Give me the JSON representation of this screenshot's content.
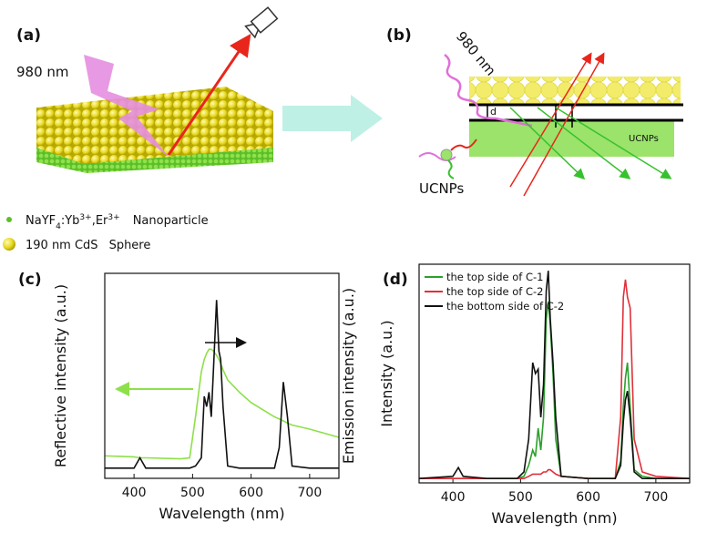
{
  "diagram": {
    "a_label": "(a)",
    "a_wavelength": "980 nm",
    "b_label": "(b)",
    "b_wavelength": "980 nm",
    "b_layer_label": "UCNPs",
    "b_particle_label": "UCNPs",
    "b_spacing": "d",
    "legend": [
      {
        "parts": [
          "NaYF",
          "4",
          ":Yb",
          "3+",
          ",Er",
          "3+"
        ],
        "desc": "Nanoparticle"
      },
      {
        "parts": [
          "190 nm CdS"
        ],
        "desc": "Sphere"
      }
    ]
  },
  "chart_data": [
    {
      "type": "line",
      "panel_label": "(c)",
      "xlabel": "Wavelength (nm)",
      "ylabel": "Reflective intensity (a.u.)",
      "y2label": "Emission intensity (a.u.)",
      "x": [
        350,
        400,
        410,
        420,
        480,
        495,
        505,
        515,
        520,
        524,
        528,
        532,
        536,
        541,
        545,
        548,
        552,
        560,
        580,
        600,
        640,
        648,
        655,
        662,
        670,
        700,
        750
      ],
      "xlim": [
        350,
        750
      ],
      "xticks": [
        400,
        500,
        600,
        700
      ],
      "ylim": [
        0,
        1
      ],
      "y2lim": [
        0,
        1
      ],
      "series": [
        {
          "color": "#8ee04a",
          "values": [
            0.11,
            0.105,
            0.1,
            0.1,
            0.095,
            0.1,
            0.3,
            0.52,
            0.58,
            0.61,
            0.63,
            0.63,
            0.62,
            0.6,
            0.58,
            0.56,
            0.53,
            0.48,
            0.42,
            0.37,
            0.3,
            0.29,
            0.28,
            0.27,
            0.26,
            0.24,
            0.2
          ]
        },
        {
          "color": "#111111",
          "axis": "y2",
          "values": [
            0.05,
            0.05,
            0.1,
            0.05,
            0.05,
            0.05,
            0.06,
            0.1,
            0.4,
            0.35,
            0.42,
            0.3,
            0.55,
            0.87,
            0.62,
            0.58,
            0.35,
            0.06,
            0.05,
            0.05,
            0.05,
            0.15,
            0.47,
            0.3,
            0.06,
            0.05,
            0.05
          ]
        }
      ]
    },
    {
      "type": "line",
      "panel_label": "(d)",
      "xlabel": "Wavelength (nm)",
      "ylabel": "Intensity (a.u.)",
      "x": [
        350,
        400,
        408,
        415,
        450,
        495,
        505,
        512,
        518,
        522,
        526,
        530,
        534,
        538,
        541,
        544,
        548,
        552,
        560,
        600,
        640,
        648,
        652,
        655,
        658,
        662,
        668,
        680,
        700,
        750
      ],
      "xlim": [
        350,
        750
      ],
      "xticks": [
        400,
        500,
        600,
        700
      ],
      "ylim": [
        0,
        1
      ],
      "series": [
        {
          "name": "the top side of C-1",
          "color": "#2ca02c",
          "values": [
            0.02,
            0.02,
            0.02,
            0.02,
            0.02,
            0.02,
            0.03,
            0.08,
            0.15,
            0.12,
            0.25,
            0.15,
            0.3,
            0.75,
            0.83,
            0.72,
            0.5,
            0.2,
            0.03,
            0.02,
            0.02,
            0.1,
            0.35,
            0.48,
            0.55,
            0.35,
            0.06,
            0.03,
            0.02,
            0.02
          ]
        },
        {
          "name": "the top side of C-2",
          "color": "#e0303a",
          "values": [
            0.02,
            0.02,
            0.02,
            0.02,
            0.02,
            0.02,
            0.02,
            0.03,
            0.04,
            0.04,
            0.04,
            0.04,
            0.05,
            0.05,
            0.06,
            0.06,
            0.05,
            0.04,
            0.03,
            0.02,
            0.02,
            0.3,
            0.85,
            0.93,
            0.85,
            0.8,
            0.2,
            0.05,
            0.03,
            0.02
          ]
        },
        {
          "name": "the bottom side of C-2",
          "color": "#111111",
          "values": [
            0.02,
            0.03,
            0.07,
            0.03,
            0.02,
            0.02,
            0.05,
            0.2,
            0.55,
            0.5,
            0.52,
            0.3,
            0.45,
            0.88,
            0.97,
            0.75,
            0.55,
            0.3,
            0.03,
            0.02,
            0.02,
            0.08,
            0.28,
            0.38,
            0.42,
            0.3,
            0.05,
            0.02,
            0.02,
            0.02
          ]
        }
      ]
    }
  ]
}
